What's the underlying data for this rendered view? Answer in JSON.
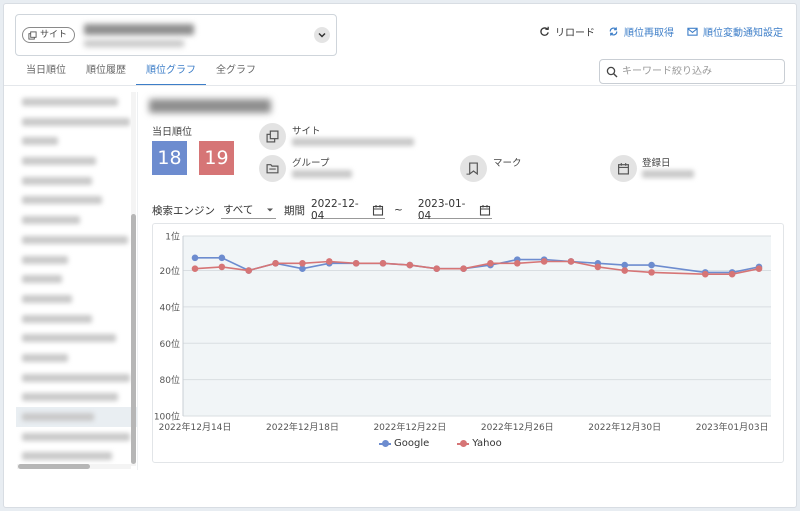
{
  "site": {
    "chip_label": "サイト"
  },
  "actions": {
    "reload": "リロード",
    "refetch": "順位再取得",
    "notify": "順位変動通知設定"
  },
  "tabs": [
    {
      "label": "当日順位"
    },
    {
      "label": "順位履歴"
    },
    {
      "label": "順位グラフ",
      "active": true
    },
    {
      "label": "全グラフ"
    }
  ],
  "search": {
    "placeholder": "キーワード絞り込み"
  },
  "sidebar": {
    "selected_index": 16
  },
  "keyword": {
    "today_label": "当日順位",
    "google_rank": "18",
    "yahoo_rank": "19",
    "site_label": "サイト",
    "group_label": "グループ",
    "mark_label": "マーク",
    "mark_value": "-",
    "registered_label": "登録日"
  },
  "filters": {
    "engine_label": "検索エンジン",
    "engine_value": "すべて",
    "period_label": "期間",
    "date_from": "2022-12-04",
    "date_sep": "~",
    "date_to": "2023-01-04"
  },
  "colors": {
    "google": "#6d8ccf",
    "yahoo": "#d67576",
    "accent": "#3d7ec8"
  },
  "chart_data": {
    "type": "line",
    "y_axis": {
      "inverted": true,
      "range": [
        1,
        100
      ],
      "ticks": [
        "1位",
        "20位",
        "40位",
        "60位",
        "80位",
        "100位"
      ],
      "tick_values": [
        1,
        20,
        40,
        60,
        80,
        100
      ]
    },
    "x_labels": [
      "2022年12月14日",
      "2022年12月18日",
      "2022年12月22日",
      "2022年12月26日",
      "2022年12月30日",
      "2023年01月03日"
    ],
    "x_label_indices": [
      0,
      4,
      8,
      12,
      16,
      20
    ],
    "x": [
      "12/14",
      "12/15",
      "12/16",
      "12/17",
      "12/18",
      "12/19",
      "12/20",
      "12/21",
      "12/22",
      "12/23",
      "12/24",
      "12/25",
      "12/26",
      "12/27",
      "12/28",
      "12/29",
      "12/30",
      "12/31",
      "01/01",
      "01/02",
      "01/03",
      "01/04"
    ],
    "series": [
      {
        "name": "Google",
        "color": "#6d8ccf",
        "values": [
          13,
          13,
          20,
          16,
          19,
          16,
          16,
          16,
          17,
          19,
          19,
          17,
          14,
          14,
          15,
          16,
          17,
          17,
          null,
          21,
          21,
          18
        ]
      },
      {
        "name": "Yahoo",
        "color": "#d67576",
        "values": [
          19,
          18,
          20,
          16,
          16,
          15,
          16,
          16,
          17,
          19,
          19,
          16,
          16,
          15,
          15,
          18,
          20,
          21,
          null,
          22,
          22,
          19
        ]
      }
    ]
  }
}
